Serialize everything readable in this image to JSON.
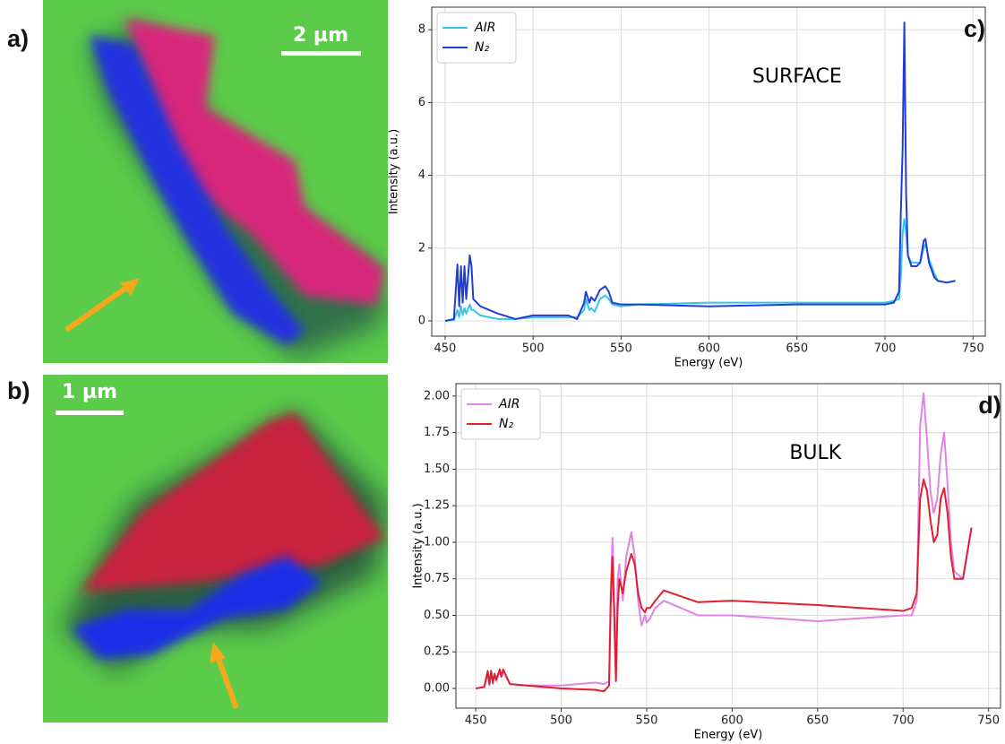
{
  "panels": [
    {
      "label": "a)",
      "scale_bar": "2 µm"
    },
    {
      "label": "b)",
      "scale_bar": "1 µm"
    }
  ],
  "chart_data": [
    {
      "type": "line",
      "panel_label": "c)",
      "annotation": "SURFACE",
      "x_label": "Energy (eV)",
      "y_label": "Intensity (a.u.)",
      "x": [
        450,
        455,
        457,
        458,
        459,
        460,
        461,
        462,
        464,
        465,
        466,
        470,
        480,
        490,
        500,
        520,
        525,
        529,
        530,
        532,
        533,
        535,
        538,
        541,
        543,
        545,
        550,
        560,
        600,
        650,
        700,
        705,
        708,
        709,
        710,
        711,
        712,
        713,
        715,
        718,
        720,
        722,
        723,
        725,
        728,
        730,
        735,
        740
      ],
      "series": [
        {
          "name": "AIR",
          "color": "#36c5e8",
          "values": [
            0,
            0.02,
            0.3,
            0.1,
            0.4,
            0.15,
            0.35,
            0.2,
            0.45,
            0.3,
            0.3,
            0.15,
            0.05,
            0.05,
            0.1,
            0.1,
            0.1,
            0.3,
            0.6,
            0.3,
            0.35,
            0.25,
            0.6,
            0.7,
            0.6,
            0.45,
            0.4,
            0.45,
            0.5,
            0.5,
            0.5,
            0.55,
            0.6,
            1.2,
            2.4,
            2.8,
            2.4,
            1.8,
            1.6,
            1.6,
            1.6,
            2.0,
            2.1,
            1.7,
            1.3,
            1.1,
            1.05,
            1.1
          ]
        },
        {
          "name": "N₂",
          "color": "#1f3fd4",
          "values": [
            0,
            0.05,
            1.55,
            0.4,
            1.5,
            0.5,
            1.5,
            0.6,
            1.8,
            1.5,
            0.6,
            0.4,
            0.2,
            0.05,
            0.15,
            0.15,
            0.05,
            0.5,
            0.8,
            0.5,
            0.65,
            0.55,
            0.85,
            0.95,
            0.8,
            0.5,
            0.45,
            0.45,
            0.4,
            0.45,
            0.45,
            0.5,
            0.8,
            3,
            4.7,
            8.2,
            3.5,
            1.8,
            1.5,
            1.5,
            1.6,
            2.2,
            2.25,
            1.6,
            1.2,
            1.1,
            1.05,
            1.1
          ]
        }
      ],
      "xlim": [
        442.4,
        757
      ],
      "ylim": [
        -0.42,
        8.62
      ],
      "xticks": [
        450,
        500,
        550,
        600,
        650,
        700,
        750
      ],
      "yticks": [
        0,
        2,
        4,
        6,
        8
      ],
      "grid": true,
      "legend": "upper left"
    },
    {
      "type": "line",
      "panel_label": "d)",
      "annotation": "BULK",
      "x_label": "Energy (eV)",
      "y_label": "Intensity (a.u.)",
      "x": [
        450,
        455,
        457,
        458,
        459,
        460,
        461,
        462,
        464,
        465,
        466,
        470,
        480,
        500,
        520,
        525,
        528,
        529,
        530,
        531,
        532,
        533,
        534,
        536,
        538,
        541,
        543,
        545,
        547,
        549,
        550,
        552,
        555,
        560,
        580,
        600,
        650,
        700,
        705,
        708,
        710,
        712,
        714,
        716,
        718,
        720,
        722,
        724,
        726,
        728,
        730,
        735,
        740
      ],
      "series": [
        {
          "name": "AIR",
          "color": "#e283e6",
          "values": [
            0,
            0.01,
            0.1,
            0.02,
            0.12,
            0.03,
            0.1,
            0.05,
            0.12,
            0.08,
            0.12,
            0.03,
            0.02,
            0.02,
            0.04,
            0.03,
            0.05,
            0.7,
            1.03,
            0.6,
            0.05,
            0.75,
            0.85,
            0.6,
            0.9,
            1.07,
            0.9,
            0.6,
            0.43,
            0.5,
            0.45,
            0.48,
            0.55,
            0.6,
            0.5,
            0.5,
            0.46,
            0.5,
            0.5,
            0.6,
            1.8,
            2.02,
            1.7,
            1.35,
            1.2,
            1.3,
            1.6,
            1.75,
            1.4,
            1.0,
            0.8,
            0.75,
            1.1
          ]
        },
        {
          "name": "N₂",
          "color": "#e0202e",
          "values": [
            0,
            0.01,
            0.12,
            0.03,
            0.12,
            0.04,
            0.1,
            0.06,
            0.13,
            0.08,
            0.13,
            0.03,
            0.02,
            0,
            -0.01,
            -0.02,
            0.02,
            0.6,
            0.9,
            0.5,
            0.05,
            0.55,
            0.75,
            0.65,
            0.8,
            0.92,
            0.85,
            0.65,
            0.55,
            0.52,
            0.55,
            0.55,
            0.6,
            0.67,
            0.59,
            0.6,
            0.57,
            0.53,
            0.55,
            0.65,
            1.3,
            1.43,
            1.35,
            1.15,
            1.0,
            1.05,
            1.3,
            1.37,
            1.2,
            0.9,
            0.75,
            0.75,
            1.1
          ]
        }
      ],
      "xlim": [
        438.4,
        757
      ],
      "ylim": [
        -0.135,
        2.085
      ],
      "xticks": [
        450,
        500,
        550,
        600,
        650,
        700,
        750
      ],
      "yticks": [
        {
          "value": 0,
          "label": "0.00"
        },
        0.25,
        {
          "value": 0.5,
          "label": "0.50"
        },
        0.75,
        {
          "value": 1,
          "label": "1.00"
        },
        1.25,
        {
          "value": 1.5,
          "label": "1.50"
        },
        1.75,
        {
          "value": 2,
          "label": "2.00"
        }
      ],
      "grid": true,
      "legend": "upper left"
    }
  ]
}
